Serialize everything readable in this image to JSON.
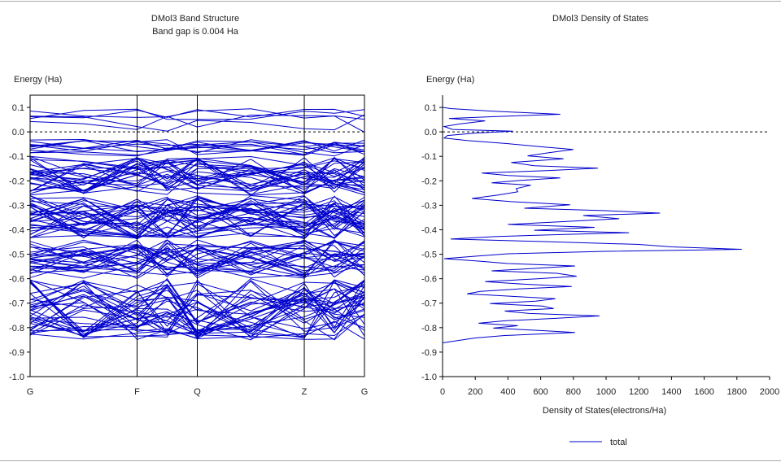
{
  "colors": {
    "series": "#0000cc",
    "axis": "#000000",
    "fermi": "#000000",
    "frame": "#a8a8a8",
    "text": "#222222"
  },
  "chart_data": [
    {
      "type": "line",
      "kind": "band-structure",
      "title": "DMol3 Band Structure",
      "subtitle": "Band gap is 0.004 Ha",
      "ylabel": "Energy (Ha)",
      "xlabel": "",
      "ylim": [
        -1.0,
        0.15
      ],
      "yticks": [
        0.1,
        0.0,
        -0.1,
        -0.2,
        -0.3,
        -0.4,
        -0.5,
        -0.6,
        -0.7,
        -0.8,
        -0.9,
        -1.0
      ],
      "ytick_labels": [
        "0.1",
        "0.0",
        "-0.1",
        "-0.2",
        "-0.3",
        "-0.4",
        "-0.5",
        "-0.6",
        "-0.7",
        "-0.8",
        "-0.9",
        "-1.0"
      ],
      "kpoints": [
        {
          "label": "G",
          "x": 0.0
        },
        {
          "label": "F",
          "x": 0.32
        },
        {
          "label": "Q",
          "x": 0.5
        },
        {
          "label": "Z",
          "x": 0.82
        },
        {
          "label": "G",
          "x": 1.0
        }
      ],
      "fermi_level": 0.0,
      "grid": false,
      "band_groups": [
        {
          "emin": 0.05,
          "emax": 0.095,
          "count": 3
        },
        {
          "emin": -0.005,
          "emax": 0.07,
          "count": 2
        },
        {
          "emin": -0.03,
          "emax": -0.1,
          "count": 10
        },
        {
          "emin": -0.1,
          "emax": -0.26,
          "count": 28
        },
        {
          "emin": -0.26,
          "emax": -0.44,
          "count": 34
        },
        {
          "emin": -0.44,
          "emax": -0.6,
          "count": 26
        },
        {
          "emin": -0.6,
          "emax": -0.85,
          "count": 36
        }
      ]
    },
    {
      "type": "line",
      "kind": "density-of-states",
      "title": "DMol3 Density of States",
      "ylabel": "Energy (Ha)",
      "xlabel": "Density of States(electrons/Ha)",
      "xlim": [
        0,
        2000
      ],
      "ylim": [
        -1.0,
        0.15
      ],
      "xticks": [
        0,
        200,
        400,
        600,
        800,
        1000,
        1200,
        1400,
        1600,
        1800,
        2000
      ],
      "xtick_labels": [
        "0",
        "200",
        "400",
        "600",
        "800",
        "1000",
        "1200",
        "1400",
        "1600",
        "1800",
        "2000"
      ],
      "yticks": [
        0.1,
        0.0,
        -0.1,
        -0.2,
        -0.3,
        -0.4,
        -0.5,
        -0.6,
        -0.7,
        -0.8,
        -0.9,
        -1.0
      ],
      "ytick_labels": [
        "0.1",
        "0.0",
        "-0.1",
        "-0.2",
        "-0.3",
        "-0.4",
        "-0.5",
        "-0.6",
        "-0.7",
        "-0.8",
        "-0.9",
        "-1.0"
      ],
      "fermi_level": 0.0,
      "grid": false,
      "legend": {
        "position": "bottom-center",
        "entries": [
          "total"
        ]
      },
      "series": [
        {
          "name": "total",
          "points": [
            [
              0,
              0.1
            ],
            [
              50,
              0.095
            ],
            [
              300,
              0.085
            ],
            [
              720,
              0.072
            ],
            [
              300,
              0.062
            ],
            [
              40,
              0.055
            ],
            [
              260,
              0.045
            ],
            [
              100,
              0.032
            ],
            [
              10,
              0.022
            ],
            [
              60,
              0.01
            ],
            [
              430,
              0.003
            ],
            [
              200,
              -0.005
            ],
            [
              30,
              -0.015
            ],
            [
              10,
              -0.025
            ],
            [
              150,
              -0.035
            ],
            [
              400,
              -0.048
            ],
            [
              620,
              -0.062
            ],
            [
              800,
              -0.072
            ],
            [
              650,
              -0.085
            ],
            [
              520,
              -0.098
            ],
            [
              740,
              -0.11
            ],
            [
              420,
              -0.125
            ],
            [
              560,
              -0.138
            ],
            [
              950,
              -0.148
            ],
            [
              640,
              -0.158
            ],
            [
              240,
              -0.168
            ],
            [
              400,
              -0.178
            ],
            [
              720,
              -0.188
            ],
            [
              480,
              -0.198
            ],
            [
              300,
              -0.208
            ],
            [
              540,
              -0.218
            ],
            [
              450,
              -0.232
            ],
            [
              460,
              -0.245
            ],
            [
              340,
              -0.258
            ],
            [
              180,
              -0.272
            ],
            [
              420,
              -0.285
            ],
            [
              780,
              -0.298
            ],
            [
              500,
              -0.312
            ],
            [
              1000,
              -0.322
            ],
            [
              1330,
              -0.332
            ],
            [
              860,
              -0.342
            ],
            [
              1080,
              -0.355
            ],
            [
              700,
              -0.368
            ],
            [
              400,
              -0.378
            ],
            [
              930,
              -0.39
            ],
            [
              560,
              -0.402
            ],
            [
              1140,
              -0.412
            ],
            [
              700,
              -0.42
            ],
            [
              320,
              -0.428
            ],
            [
              50,
              -0.438
            ],
            [
              600,
              -0.448
            ],
            [
              1200,
              -0.46
            ],
            [
              1400,
              -0.47
            ],
            [
              1830,
              -0.48
            ],
            [
              1000,
              -0.488
            ],
            [
              400,
              -0.498
            ],
            [
              200,
              -0.508
            ],
            [
              10,
              -0.518
            ],
            [
              220,
              -0.528
            ],
            [
              400,
              -0.538
            ],
            [
              810,
              -0.548
            ],
            [
              560,
              -0.558
            ],
            [
              300,
              -0.568
            ],
            [
              700,
              -0.578
            ],
            [
              820,
              -0.59
            ],
            [
              580,
              -0.6
            ],
            [
              260,
              -0.612
            ],
            [
              490,
              -0.622
            ],
            [
              790,
              -0.632
            ],
            [
              460,
              -0.642
            ],
            [
              230,
              -0.652
            ],
            [
              150,
              -0.662
            ],
            [
              420,
              -0.672
            ],
            [
              690,
              -0.682
            ],
            [
              570,
              -0.692
            ],
            [
              290,
              -0.702
            ],
            [
              610,
              -0.712
            ],
            [
              680,
              -0.722
            ],
            [
              380,
              -0.732
            ],
            [
              530,
              -0.742
            ],
            [
              960,
              -0.752
            ],
            [
              690,
              -0.762
            ],
            [
              380,
              -0.772
            ],
            [
              220,
              -0.782
            ],
            [
              460,
              -0.792
            ],
            [
              310,
              -0.802
            ],
            [
              600,
              -0.812
            ],
            [
              810,
              -0.82
            ],
            [
              380,
              -0.832
            ],
            [
              200,
              -0.842
            ],
            [
              70,
              -0.855
            ],
            [
              0,
              -0.862
            ]
          ]
        }
      ]
    }
  ]
}
